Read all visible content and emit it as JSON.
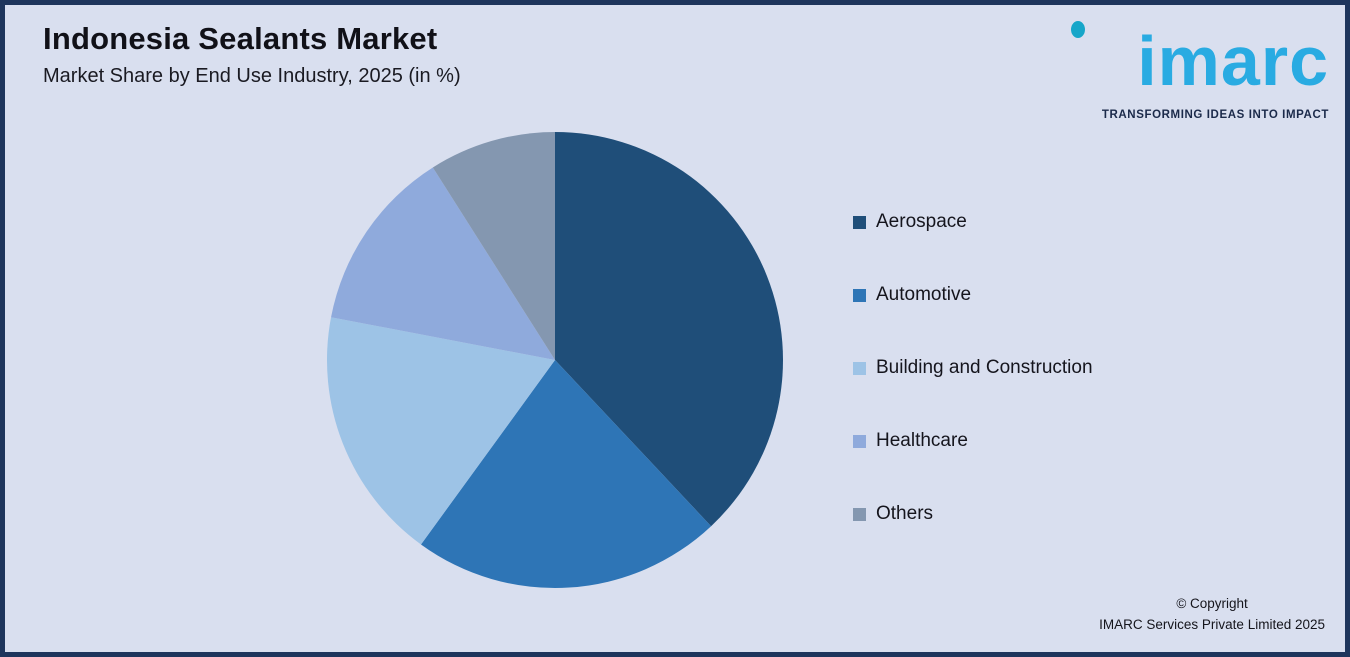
{
  "page": {
    "title": "Indonesia Sealants Market",
    "subtitle": "Market Share by End Use Industry, 2025 (in %)",
    "background_color": "#d9dfef",
    "border_color": "#1e355c"
  },
  "logo": {
    "text": "imarc",
    "tagline": "TRANSFORMING IDEAS INTO IMPACT",
    "brand_color": "#29abe2",
    "tagline_color": "#1b2a4a"
  },
  "footer": {
    "line1": "© Copyright",
    "line2": "IMARC Services Private Limited 2025"
  },
  "chart_data": {
    "type": "pie",
    "title": "Indonesia Sealants Market",
    "subtitle": "Market Share by End Use Industry, 2025 (in %)",
    "unit": "%",
    "start_angle_deg": 0,
    "direction": "clockwise",
    "legend_position": "right",
    "data_labels_visible": false,
    "categories": [
      "Aerospace",
      "Automotive",
      "Building and Construction",
      "Healthcare",
      "Others"
    ],
    "values": [
      38,
      22,
      18,
      13,
      9
    ],
    "colors": [
      "#1f4e79",
      "#2e75b6",
      "#9dc3e6",
      "#8faadc",
      "#8497b0"
    ]
  }
}
